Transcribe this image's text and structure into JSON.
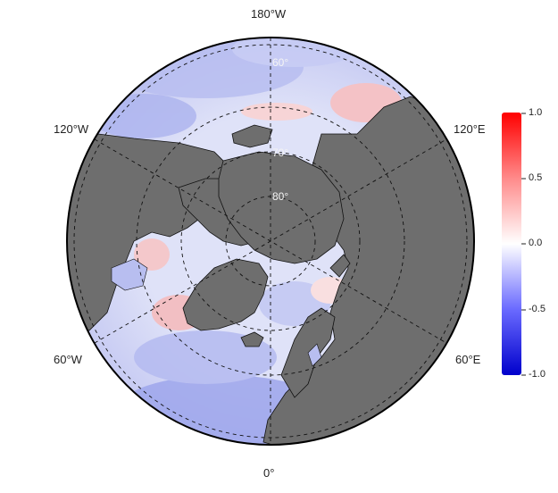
{
  "map": {
    "projection": "north polar stereographic",
    "land_color": "#6e6e6e",
    "ocean_positive_color": "#ff0000",
    "ocean_negative_color": "#0000ff",
    "meridian_labels": {
      "top": "180°W",
      "upper_left": "120°W",
      "upper_right": "120°E",
      "lower_left": "60°W",
      "lower_right": "60°E",
      "bottom": "0°"
    },
    "latitude_labels": [
      "60°",
      "70°",
      "80°"
    ]
  },
  "colorbar": {
    "min": -1.0,
    "max": 1.0,
    "ticks": [
      "1.0",
      "0.5",
      "0.0",
      "-0.5",
      "-1.0"
    ],
    "colors": [
      "#0000ff",
      "#ffffff",
      "#ff0000"
    ]
  }
}
